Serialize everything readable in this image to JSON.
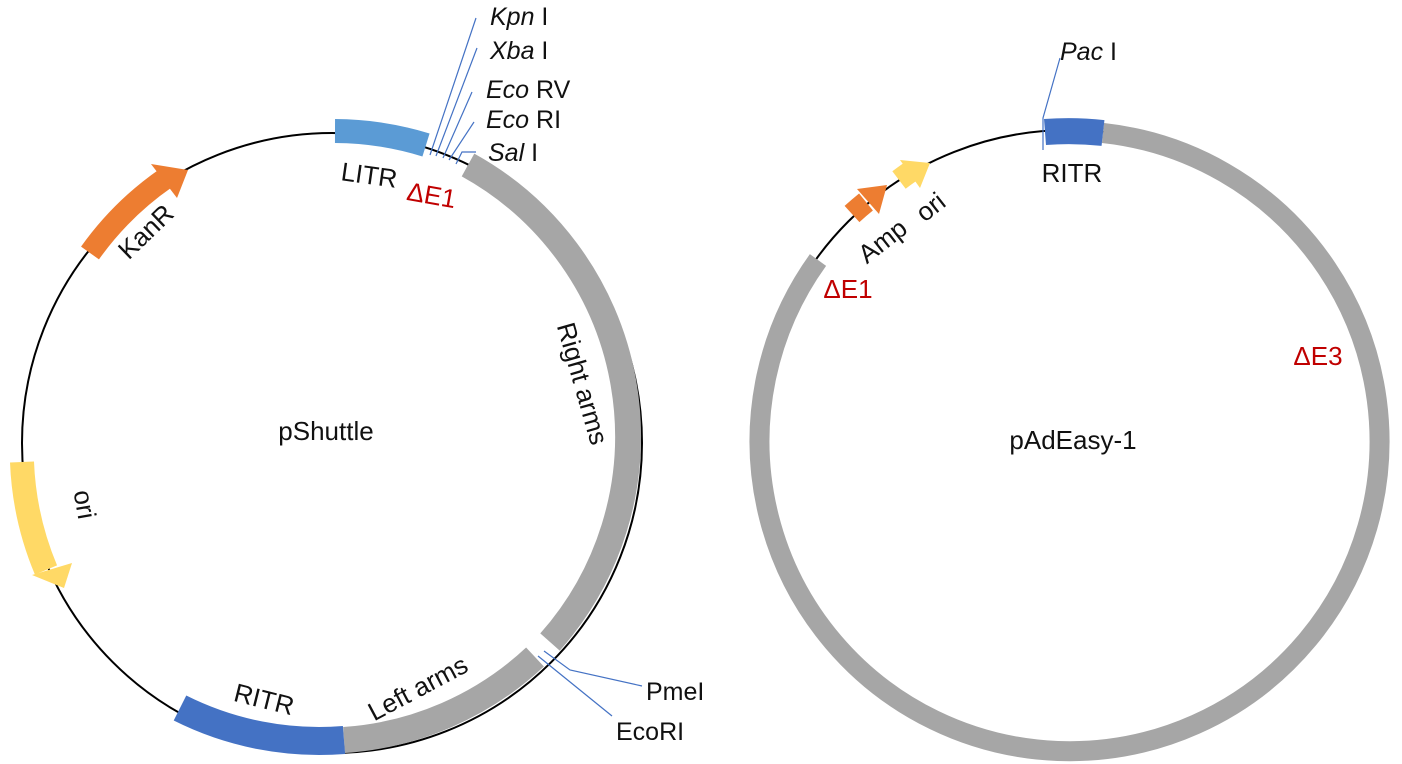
{
  "colors": {
    "backbone": "#000000",
    "arm": "#a6a6a6",
    "litr": "#5b9bd5",
    "ritr": "#4472c4",
    "kanr": "#ed7d31",
    "ori": "#ffd966",
    "site_line": "#4472c4",
    "deletion": "#c00000"
  },
  "pshuttle": {
    "name": "pShuttle",
    "features": {
      "litr": "LITR",
      "delta_e1": "ΔE1",
      "kanr": "KanR",
      "ori": "ori",
      "ritr": "RITR",
      "left_arms": "Left arms",
      "right_arms": "Right arms"
    },
    "sites": [
      {
        "italic": "Kpn",
        "suffix": " I"
      },
      {
        "italic": "Xba",
        "suffix": " I"
      },
      {
        "italic": "Eco",
        "suffix": " RV"
      },
      {
        "italic": "Eco",
        "suffix": " RI"
      },
      {
        "italic": "Sal",
        "suffix": " I"
      }
    ],
    "lower_sites": [
      "PmeI",
      "EcoRI"
    ]
  },
  "padeasy": {
    "name": "pAdEasy-1",
    "features": {
      "ritr": "RITR",
      "amp": "Amp",
      "ori": "ori",
      "delta_e1": "ΔE1",
      "delta_e3": "ΔE3"
    },
    "site": {
      "italic": "Pac",
      "suffix": " I"
    }
  }
}
